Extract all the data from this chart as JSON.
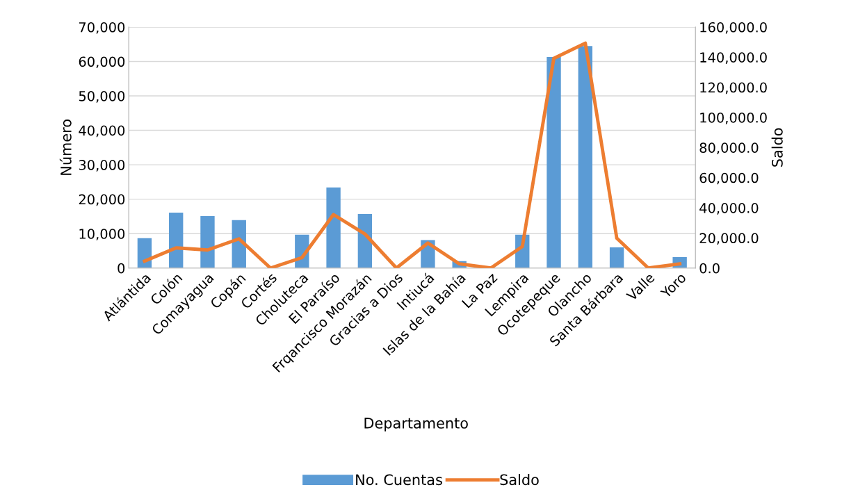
{
  "chart_data": {
    "type": "bar",
    "xlabel": "Departamento",
    "ylabel": "Número",
    "y2label": "Saldo",
    "categories": [
      "Atlántida",
      "Colón",
      "Comayagua",
      "Copán",
      "Cortés",
      "Choluteca",
      "El Paraíso",
      "Frqancisco Morazán",
      "Gracias a Dios",
      "Intiucá",
      "Islas de la Bahía",
      "La Paz",
      "Lempira",
      "Ocotepeque",
      "Olancho",
      "Santa Bárbara",
      "Valle",
      "Yoro"
    ],
    "series": [
      {
        "name": "No. Cuentas",
        "color": "#5b9bd5",
        "values": [
          8700,
          16100,
          15100,
          13900,
          0,
          9700,
          23400,
          15700,
          0,
          8100,
          2000,
          0,
          9700,
          61300,
          64500,
          6000,
          0,
          3200
        ]
      },
      {
        "name": "Saldo",
        "type": "line",
        "axis": "y2",
        "color": "#ed7d31",
        "values": [
          4600,
          13400,
          12000,
          19400,
          0,
          6900,
          35500,
          22600,
          0,
          16600,
          2800,
          0,
          14300,
          139200,
          149300,
          19800,
          0,
          2800
        ]
      }
    ],
    "ylim": [
      0,
      70000
    ],
    "yticks": [
      {
        "value": 0,
        "label": "0"
      },
      {
        "value": 10000,
        "label": "10,000"
      },
      {
        "value": 20000,
        "label": "20,000"
      },
      {
        "value": 30000,
        "label": "30,000"
      },
      {
        "value": 40000,
        "label": "40,000"
      },
      {
        "value": 50000,
        "label": "50,000"
      },
      {
        "value": 60000,
        "label": "60,000"
      },
      {
        "value": 70000,
        "label": "70,000"
      }
    ],
    "y2lim": [
      0,
      160000
    ],
    "y2ticks": [
      {
        "value": 0,
        "label": "0.0"
      },
      {
        "value": 20000,
        "label": "20,000.0"
      },
      {
        "value": 40000,
        "label": "40,000.0"
      },
      {
        "value": 60000,
        "label": "60,000.0"
      },
      {
        "value": 80000,
        "label": "80,000.0"
      },
      {
        "value": 100000,
        "label": "100,000.0"
      },
      {
        "value": 120000,
        "label": "120,000.0"
      },
      {
        "value": 140000,
        "label": "140,000.0"
      },
      {
        "value": 160000,
        "label": "160,000.0"
      }
    ],
    "grid": "y",
    "legend": "bottom",
    "marker": "none",
    "line_style": "solid"
  }
}
